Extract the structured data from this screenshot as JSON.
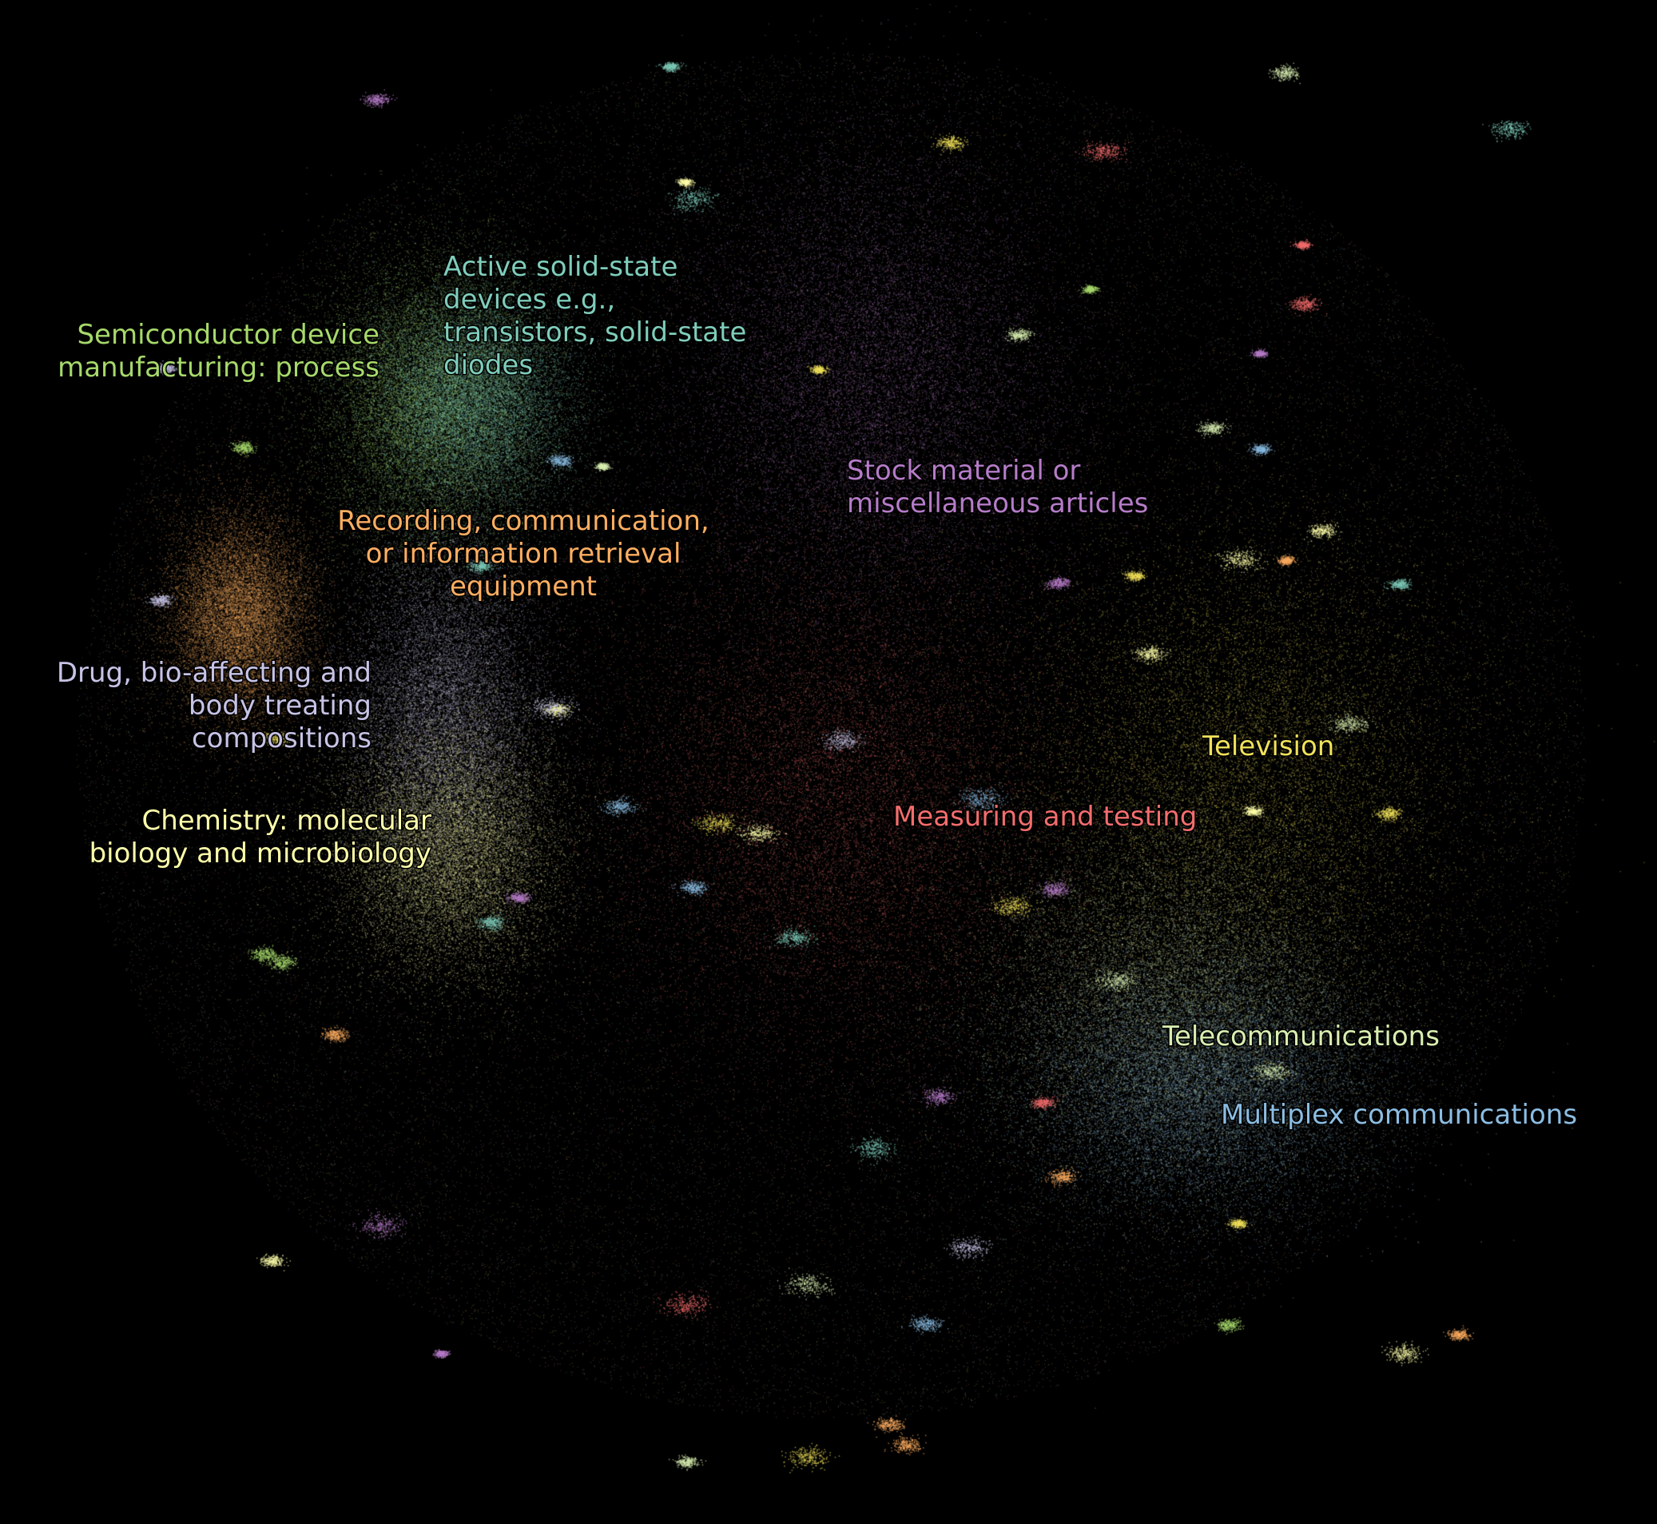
{
  "chart_data": {
    "type": "scatter",
    "title": "",
    "xlabel": "",
    "ylabel": "",
    "grid": false,
    "legend": "none",
    "background": "#000000",
    "clusters": [
      {
        "name": "Semiconductor device manufacturing: process",
        "label_lines": [
          "Semiconductor device",
          "manufacturing: process"
        ],
        "align": "end",
        "color": "#a6d96a",
        "x": 0.24,
        "y": 0.8
      },
      {
        "name": "Active solid-state devices e.g., transistors, solid-state diodes",
        "label_lines": [
          "Active solid-state",
          "devices e.g.,",
          "transistors, solid-state",
          "diodes"
        ],
        "align": "start",
        "color": "#7fcdbb",
        "x": 0.31,
        "y": 0.76
      },
      {
        "name": "Stock material or miscellaneous articles",
        "label_lines": [
          "Stock material or",
          "miscellaneous articles"
        ],
        "align": "start",
        "color": "#b57cc8",
        "x": 0.52,
        "y": 0.8
      },
      {
        "name": "Recording, communication, or information retrieval equipment",
        "label_lines": [
          "Recording, communication,",
          "or information retrieval",
          "equipment"
        ],
        "align": "middle",
        "color": "#fdae61",
        "x": 0.14,
        "y": 0.6
      },
      {
        "name": "Drug, bio-affecting and body treating compositions",
        "label_lines": [
          "Drug, bio-affecting and",
          "body treating",
          "compositions"
        ],
        "align": "end",
        "color": "#c7c3e6",
        "x": 0.26,
        "y": 0.51
      },
      {
        "name": "Chemistry: molecular biology and microbiology",
        "label_lines": [
          "Chemistry: molecular",
          "biology and microbiology"
        ],
        "align": "end",
        "color": "#ffffaa",
        "x": 0.27,
        "y": 0.43
      },
      {
        "name": "Television",
        "label_lines": [
          "Television"
        ],
        "align": "start",
        "color": "#f0e15a",
        "x": 0.74,
        "y": 0.48
      },
      {
        "name": "Measuring and testing",
        "label_lines": [
          "Measuring and testing"
        ],
        "align": "start",
        "color": "#f46d6d",
        "x": 0.52,
        "y": 0.47
      },
      {
        "name": "Telecommunications",
        "label_lines": [
          "Telecommunications"
        ],
        "align": "start",
        "color": "#d9eeb0",
        "x": 0.7,
        "y": 0.27
      },
      {
        "name": "Multiplex communications",
        "label_lines": [
          "Multiplex communications"
        ],
        "align": "start",
        "color": "#8bbde3",
        "x": 0.74,
        "y": 0.24
      }
    ]
  }
}
